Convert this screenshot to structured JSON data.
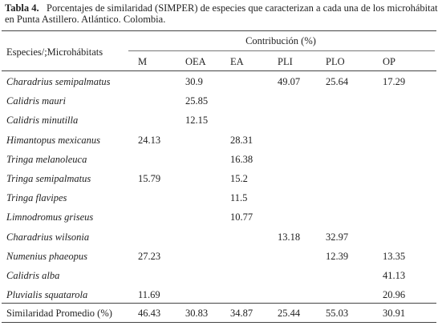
{
  "caption": {
    "label": "Tabla 4.",
    "lines": [
      "Porcentajes de similaridad (SIMPER) de especies que caracterizan a cada una de los microhábitats",
      "en Punta Astillero. Atlántico. Colombia."
    ]
  },
  "table": {
    "row_header": "Especies/;Microhábitats",
    "group_header": "Contribución (%)",
    "columns": [
      "M",
      "OEA",
      "EA",
      "PLI",
      "PLO",
      "OP"
    ],
    "rows": [
      {
        "species": "Charadrius semipalmatus",
        "cells": [
          null,
          30.9,
          null,
          49.07,
          25.64,
          17.29
        ]
      },
      {
        "species": "Calidris mauri",
        "cells": [
          null,
          25.85,
          null,
          null,
          null,
          null
        ]
      },
      {
        "species": "Calidris minutilla",
        "cells": [
          null,
          12.15,
          null,
          null,
          null,
          null
        ]
      },
      {
        "species": "Himantopus mexicanus",
        "cells": [
          24.13,
          null,
          28.31,
          null,
          null,
          null
        ]
      },
      {
        "species": "Tringa melanoleuca",
        "cells": [
          null,
          null,
          16.38,
          null,
          null,
          null
        ]
      },
      {
        "species": "Tringa semipalmatus",
        "cells": [
          15.79,
          null,
          15.2,
          null,
          null,
          null
        ]
      },
      {
        "species": "Tringa flavipes",
        "cells": [
          null,
          null,
          11.5,
          null,
          null,
          null
        ]
      },
      {
        "species": "Limnodromus griseus",
        "cells": [
          null,
          null,
          10.77,
          null,
          null,
          null
        ]
      },
      {
        "species": "Charadrius wilsonia",
        "cells": [
          null,
          null,
          null,
          13.18,
          32.97,
          null
        ]
      },
      {
        "species": "Numenius phaeopus",
        "cells": [
          27.23,
          null,
          null,
          null,
          12.39,
          13.35
        ]
      },
      {
        "species": "Calidris alba",
        "cells": [
          null,
          null,
          null,
          null,
          null,
          41.13
        ]
      },
      {
        "species": "Pluvialis squatarola",
        "cells": [
          11.69,
          null,
          null,
          null,
          null,
          20.96
        ]
      }
    ],
    "summary": {
      "label": "Similaridad Promedio (%)",
      "cells": [
        46.43,
        30.83,
        34.87,
        25.44,
        55.03,
        30.91
      ]
    }
  }
}
